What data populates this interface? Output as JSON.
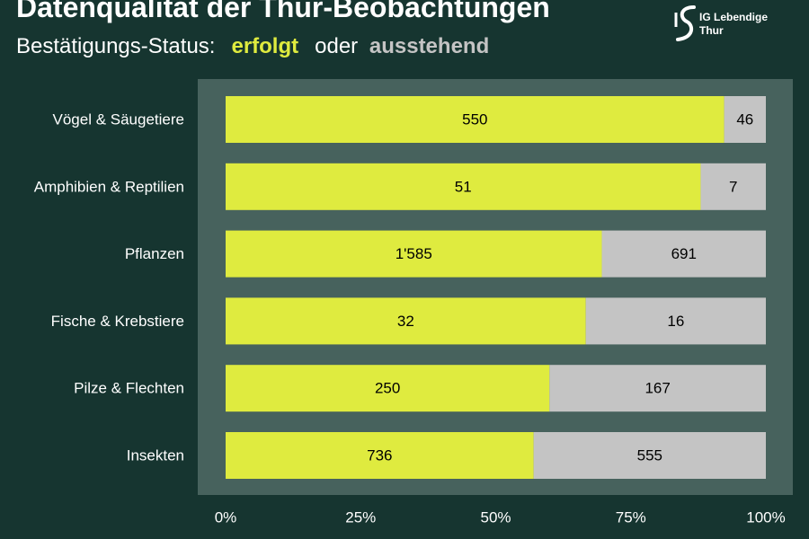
{
  "header": {
    "title": "Datenqualität der Thur-Beobachtungen",
    "subtitle_prefix": "Bestätigungs-Status:",
    "subtitle_confirmed": "erfolgt",
    "subtitle_middle": "oder",
    "subtitle_pending": "ausstehend"
  },
  "logo": {
    "line1": "IG Lebendige",
    "line2": "Thur",
    "icon": "thur-river-logo-icon"
  },
  "colors": {
    "background": "#163530",
    "plot_area": "#47625d",
    "confirmed": "#dfeb3f",
    "pending": "#c4c4c4"
  },
  "chart_data": {
    "type": "bar",
    "orientation": "horizontal",
    "stacked": "percent",
    "title": "Datenqualität der Thur-Beobachtungen",
    "subtitle": "Bestätigungs-Status: erfolgt oder ausstehend",
    "categories": [
      "Vögel & Säugetiere",
      "Amphibien & Reptilien",
      "Pflanzen",
      "Fische & Krebstiere",
      "Pilze & Flechten",
      "Insekten"
    ],
    "series": [
      {
        "name": "erfolgt",
        "values": [
          550,
          51,
          1585,
          32,
          250,
          736
        ],
        "labels": [
          "550",
          "51",
          "1'585",
          "32",
          "250",
          "736"
        ],
        "color": "#dfeb3f"
      },
      {
        "name": "ausstehend",
        "values": [
          46,
          7,
          691,
          16,
          167,
          555
        ],
        "labels": [
          "46",
          "7",
          "691",
          "16",
          "167",
          "555"
        ],
        "color": "#c4c4c4"
      }
    ],
    "x_ticks": [
      "0%",
      "25%",
      "50%",
      "75%",
      "100%"
    ],
    "xlim": [
      0,
      100
    ],
    "grid": false,
    "legend": "subtitle"
  }
}
